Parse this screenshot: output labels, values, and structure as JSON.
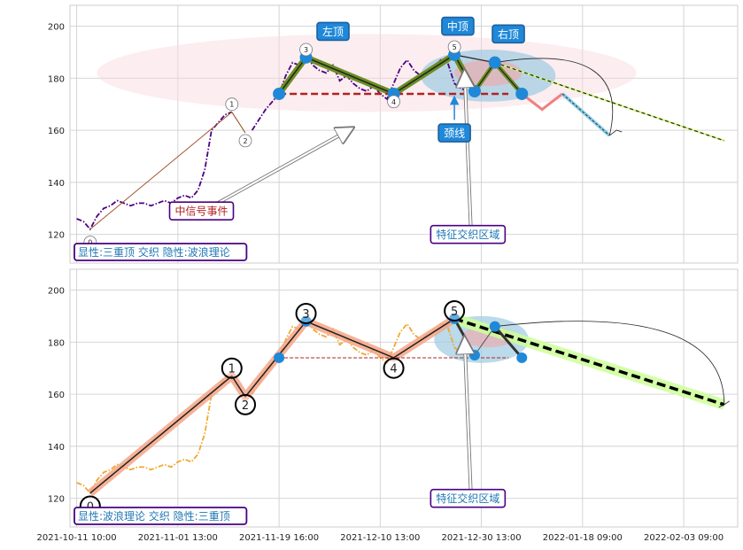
{
  "chart_data": [
    {
      "type": "line",
      "yticks": [
        120,
        140,
        160,
        180,
        200
      ],
      "ylim": [
        109,
        208
      ],
      "grid": true,
      "price_segments": [
        {
          "color": "#4b0082",
          "style": "dashdot",
          "points": [
            [
              0,
              126
            ],
            [
              1,
              125
            ],
            [
              2,
              122
            ],
            [
              3,
              127
            ],
            [
              4,
              130
            ],
            [
              5,
              131
            ],
            [
              6,
              133
            ],
            [
              7,
              132
            ],
            [
              8,
              131
            ],
            [
              9,
              132
            ],
            [
              10,
              132
            ],
            [
              11,
              131
            ],
            [
              12,
              132
            ],
            [
              13,
              133
            ],
            [
              14,
              132
            ],
            [
              15,
              134
            ],
            [
              16,
              135
            ],
            [
              17,
              134
            ],
            [
              18,
              137
            ],
            [
              19,
              145
            ],
            [
              20,
              160
            ],
            [
              21,
              163
            ],
            [
              22,
              166
            ],
            [
              23,
              167
            ]
          ]
        },
        {
          "color": "#4b0082",
          "style": "dashdot",
          "points": [
            [
              26,
              160
            ],
            [
              27,
              164
            ],
            [
              28,
              168
            ],
            [
              29,
              171
            ],
            [
              30,
              174
            ],
            [
              31,
              181
            ],
            [
              32,
              186
            ],
            [
              33,
              185
            ],
            [
              34,
              189
            ],
            [
              35,
              185
            ],
            [
              36,
              183
            ],
            [
              37,
              182
            ],
            [
              38,
              185
            ],
            [
              39,
              179
            ],
            [
              40,
              181
            ],
            [
              41,
              178
            ],
            [
              42,
              176
            ],
            [
              43,
              175
            ],
            [
              44,
              177
            ],
            [
              45,
              174
            ],
            [
              46,
              172
            ],
            [
              47,
              178
            ],
            [
              48,
              184
            ],
            [
              49,
              187
            ],
            [
              50,
              183
            ],
            [
              51,
              181
            ],
            [
              52,
              183
            ],
            [
              53,
              185
            ],
            [
              54,
              187
            ],
            [
              55,
              186
            ],
            [
              56,
              178
            ],
            [
              57,
              176
            ],
            [
              58,
              175
            ],
            [
              59,
              176
            ]
          ]
        }
      ],
      "wave_path": [
        [
          2,
          122
        ],
        [
          23,
          167
        ],
        [
          25,
          159
        ],
        [
          34,
          188
        ],
        [
          47,
          174
        ],
        [
          56,
          189
        ],
        [
          59,
          175
        ]
      ],
      "wave_labels": [
        {
          "label": "0",
          "x": 2,
          "y": 117
        },
        {
          "label": "1",
          "x": 23,
          "y": 170
        },
        {
          "label": "2",
          "x": 25,
          "y": 156
        },
        {
          "label": "3",
          "x": 34,
          "y": 191
        },
        {
          "label": "4",
          "x": 47,
          "y": 171
        },
        {
          "label": "5",
          "x": 56,
          "y": 192
        }
      ],
      "hs_points": [
        [
          30,
          174
        ],
        [
          34,
          188
        ],
        [
          47,
          174
        ],
        [
          56,
          189
        ],
        [
          59,
          175
        ],
        [
          62,
          186
        ],
        [
          66,
          174
        ]
      ],
      "extension": [
        [
          66,
          174
        ],
        [
          69,
          168
        ],
        [
          72,
          174
        ],
        [
          79,
          158
        ]
      ],
      "neckline": {
        "y": 174,
        "x1": 30,
        "x2": 64
      },
      "forecast": [
        [
          62,
          186
        ],
        [
          96,
          156
        ]
      ],
      "zones": [
        {
          "cx": 43,
          "cy": 182,
          "rx": 40,
          "ry": 15,
          "fill": "#f8d7de",
          "opacity": 0.45
        },
        {
          "cx": 61,
          "cy": 181,
          "rx": 10,
          "ry": 10,
          "fill": "#9ecae1",
          "opacity": 0.7
        },
        {
          "cx": 61,
          "cy": 182,
          "rx": 5,
          "ry": 5,
          "fill": "#f4a6a6",
          "opacity": 0.6
        }
      ],
      "labels": [
        {
          "text": "左顶",
          "x": 38,
          "y": 198,
          "style": "box-blue"
        },
        {
          "text": "中顶",
          "x": 56.5,
          "y": 200,
          "style": "box-blue"
        },
        {
          "text": "右顶",
          "x": 64,
          "y": 197,
          "style": "box-blue"
        },
        {
          "text": "颈线",
          "x": 56,
          "y": 159,
          "style": "box-blue"
        },
        {
          "text": "中信号事件",
          "x": 18.5,
          "y": 129,
          "style": "box-white-red"
        },
        {
          "text": "特征交织区域",
          "x": 58,
          "y": 120,
          "style": "box-white-blue"
        }
      ],
      "caption": "显性:三重顶 交织 隐性:波浪理论"
    },
    {
      "type": "line",
      "yticks": [
        120,
        140,
        160,
        180,
        200
      ],
      "ylim": [
        109,
        208
      ],
      "grid": true,
      "price_segments": [
        {
          "color": "#f0a830",
          "style": "dashdot",
          "points": [
            [
              0,
              126
            ],
            [
              1,
              125
            ],
            [
              2,
              122
            ],
            [
              3,
              127
            ],
            [
              4,
              130
            ],
            [
              5,
              131
            ],
            [
              6,
              133
            ],
            [
              7,
              132
            ],
            [
              8,
              131
            ],
            [
              9,
              132
            ],
            [
              10,
              132
            ],
            [
              11,
              131
            ],
            [
              12,
              132
            ],
            [
              13,
              133
            ],
            [
              14,
              132
            ],
            [
              15,
              134
            ],
            [
              16,
              135
            ],
            [
              17,
              134
            ],
            [
              18,
              137
            ],
            [
              19,
              145
            ],
            [
              20,
              160
            ],
            [
              21,
              163
            ],
            [
              22,
              166
            ],
            [
              23,
              167
            ]
          ]
        },
        {
          "color": "#f0a830",
          "style": "dashdot",
          "points": [
            [
              26,
              160
            ],
            [
              27,
              164
            ],
            [
              28,
              168
            ],
            [
              29,
              171
            ],
            [
              30,
              174
            ],
            [
              31,
              181
            ],
            [
              32,
              186
            ],
            [
              33,
              185
            ],
            [
              34,
              189
            ],
            [
              35,
              185
            ],
            [
              36,
              183
            ],
            [
              37,
              182
            ],
            [
              38,
              185
            ],
            [
              39,
              179
            ],
            [
              40,
              181
            ],
            [
              41,
              178
            ],
            [
              42,
              176
            ],
            [
              43,
              175
            ],
            [
              44,
              177
            ],
            [
              45,
              174
            ],
            [
              46,
              172
            ],
            [
              47,
              178
            ],
            [
              48,
              184
            ],
            [
              49,
              187
            ],
            [
              50,
              183
            ],
            [
              51,
              181
            ],
            [
              52,
              183
            ],
            [
              53,
              185
            ],
            [
              54,
              187
            ],
            [
              55,
              186
            ],
            [
              56,
              178
            ],
            [
              57,
              176
            ],
            [
              58,
              175
            ],
            [
              59,
              176
            ]
          ]
        }
      ],
      "wave_path": [
        [
          2,
          122
        ],
        [
          23,
          167
        ],
        [
          25,
          159
        ],
        [
          34,
          188
        ],
        [
          47,
          174
        ],
        [
          56,
          189
        ]
      ],
      "wave_labels": [
        {
          "label": "0",
          "x": 2,
          "y": 117
        },
        {
          "label": "1",
          "x": 23,
          "y": 170
        },
        {
          "label": "2",
          "x": 25,
          "y": 156
        },
        {
          "label": "3",
          "x": 34,
          "y": 191
        },
        {
          "label": "4",
          "x": 47,
          "y": 170
        },
        {
          "label": "5",
          "x": 56,
          "y": 192
        }
      ],
      "hs_points": [
        [
          30,
          174
        ],
        [
          34,
          188
        ],
        [
          47,
          174
        ],
        [
          56,
          189
        ],
        [
          59,
          175
        ],
        [
          62,
          186
        ],
        [
          66,
          174
        ]
      ],
      "neckline": {
        "y": 174,
        "x1": 30,
        "x2": 64
      },
      "forecast": [
        [
          56,
          189
        ],
        [
          96,
          156
        ]
      ],
      "zones": [
        {
          "cx": 60,
          "cy": 181,
          "rx": 7,
          "ry": 9,
          "fill": "#9ecae1",
          "opacity": 0.7
        },
        {
          "cx": 61,
          "cy": 182,
          "rx": 4,
          "ry": 4,
          "fill": "#f4a6a6",
          "opacity": 0.6
        }
      ],
      "labels": [
        {
          "text": "特征交织区域",
          "x": 58,
          "y": 120,
          "style": "box-white-blue"
        }
      ],
      "caption": "显性:波浪理论 交织 隐性:三重顶"
    }
  ],
  "x_ticks": [
    {
      "x": 0,
      "label": "2021-10-11 10:00"
    },
    {
      "x": 15,
      "label": "2021-11-01 13:00"
    },
    {
      "x": 30,
      "label": "2021-11-19 16:00"
    },
    {
      "x": 45,
      "label": "2021-12-10 13:00"
    },
    {
      "x": 60,
      "label": "2021-12-30 13:00"
    },
    {
      "x": 75,
      "label": "2022-01-18 09:00"
    },
    {
      "x": 90,
      "label": "2022-02-03 09:00"
    }
  ],
  "xlim": [
    -1,
    98
  ],
  "colors": {
    "blue_node": "#1f88d8",
    "olive": "#6b8e23",
    "neckline": "#b22222",
    "forecast_green": "#ccff99",
    "salmon": "#f5a585",
    "caption_border": "#4b0082",
    "caption_text": "#1f77b4"
  }
}
